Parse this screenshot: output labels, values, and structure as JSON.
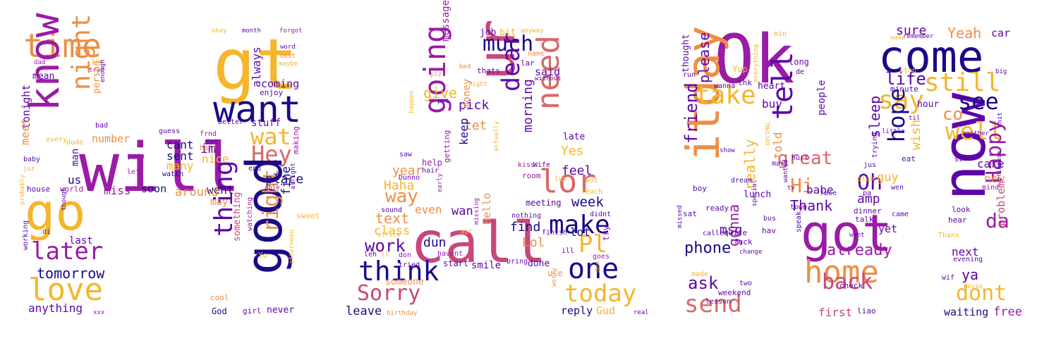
{
  "wordcloud": {
    "colors": {
      "deep-purple": "#1a0a87",
      "purple": "#5c06a8",
      "magenta": "#9a1ba6",
      "pink": "#c9467a",
      "rose": "#d96868",
      "orange": "#ee8e45",
      "gold": "#f5b52c",
      "yellow": "#f0f045"
    },
    "words": [
      "time",
      "dad",
      "mean",
      "tonight",
      "know",
      "night",
      "meet",
      "go",
      "will",
      "gt",
      "want",
      "wat",
      "Hey",
      "later",
      "tomorrow",
      "love",
      "anything",
      "xxx",
      "good",
      "thing",
      "something",
      "right",
      "fine",
      "place",
      "went",
      "around",
      "soon",
      "miss",
      "number",
      "us",
      "man",
      "cant",
      "sent",
      "im",
      "nice",
      "many",
      "stuff",
      "always",
      "coming",
      "enjoy",
      "better",
      "frnd",
      "dat",
      "half",
      "making",
      "guess",
      "pain",
      "left",
      "watch",
      "end",
      "able",
      "alright",
      "sweet",
      "watching",
      "afternoon",
      "may",
      "cool",
      "God",
      "girl",
      "never",
      "Yo",
      "okay",
      "month",
      "forgot",
      "word",
      "best",
      "maybe",
      "pay",
      "true",
      "enough",
      "person",
      "bad",
      "dude",
      "every",
      "baby",
      "juz",
      "house",
      "world",
      "probably",
      "di",
      "though",
      "last",
      "working",
      "ur",
      "much",
      "dear",
      "need",
      "going",
      "give",
      "message",
      "job",
      "bit",
      "anyway",
      "name",
      "lar",
      "said",
      "without",
      "bed",
      "thats",
      "plz",
      "put",
      "Aight",
      "lor",
      "make",
      "call",
      "think",
      "Sorry",
      "leave",
      "birthday",
      "work",
      "way",
      "text",
      "class",
      "even",
      "wan",
      "find",
      "Lol",
      "week",
      "Yes",
      "feel",
      "late",
      "morning",
      "let",
      "pick",
      "keep",
      "year",
      "Haha",
      "getting",
      "help",
      "Dunno",
      "Hello",
      "smile",
      "one",
      "today",
      "reply",
      "Gud",
      "real",
      "Pl",
      "lot",
      "done",
      "use",
      "worry",
      "den",
      "goes",
      "try",
      "ill",
      "didnt",
      "finish",
      "reach",
      "meeting",
      "nothing",
      "luv",
      "wot",
      "kiss",
      "Wife",
      "room",
      "actually",
      "happen",
      "saw",
      "hair",
      "sound",
      "office",
      "leh",
      "ll",
      "don",
      "tried",
      "someone",
      "dun",
      "start",
      "bring",
      "abt",
      "missing",
      "havent",
      "early",
      "money",
      "Ok",
      "come",
      "now",
      "got",
      "home",
      "back",
      "send",
      "ask",
      "phone",
      "msg",
      "gonna",
      "itday",
      "friend",
      "take",
      "tell",
      "great",
      "Hi",
      "Oh",
      "Thank",
      "amp",
      "already",
      "still",
      "say",
      "see",
      "well",
      "co",
      "Yeah",
      "car",
      "sure",
      "life",
      "hope",
      "sleep",
      "wish",
      "Happy",
      "da",
      "dont",
      "free",
      "ya",
      "problem",
      "next",
      "evening",
      "waiting",
      "care",
      "new",
      "mind",
      "guy",
      "yet",
      "please",
      "thought",
      "run",
      "wanna",
      "Yup",
      "thk",
      "heart",
      "really",
      "buy",
      "told",
      "people",
      "babe",
      "talk",
      "plan",
      "check",
      "first",
      "liao",
      "min",
      "long",
      "de",
      "everything",
      "stop",
      "hour",
      "minute",
      "remember",
      "wake",
      "big",
      "sir",
      "another",
      "shit",
      "til",
      "little",
      "eat",
      "jus",
      "hurt",
      "mail",
      "trying",
      "wen",
      "hear",
      "look",
      "Thanx",
      "wif",
      "movie",
      "princess",
      "sat",
      "boy",
      "ready",
      "lunch",
      "wont",
      "special",
      "DECIMAL",
      "show",
      "dream",
      "missed",
      "called",
      "quite",
      "fuck",
      "change",
      "bus",
      "hav",
      "two",
      "weekend",
      "lesson",
      "made",
      "face",
      "tv",
      "wanted",
      "speak",
      "dinner",
      "town",
      "pa",
      "came"
    ]
  }
}
